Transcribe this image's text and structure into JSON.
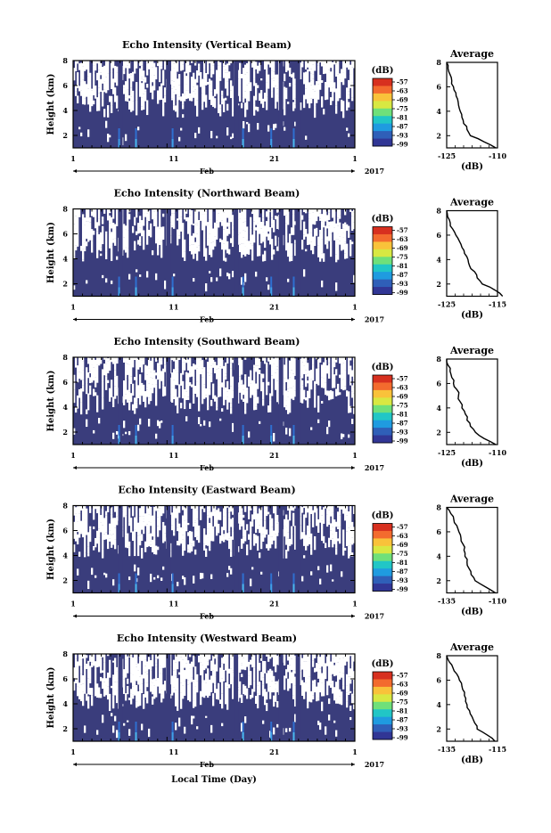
{
  "figure": {
    "xlabel": "Local Time (Day)"
  },
  "colorbar": {
    "unit": "(dB)",
    "ticks": [
      "-57",
      "-63",
      "-69",
      "-75",
      "-81",
      "-87",
      "-93",
      "-99"
    ],
    "colors": [
      "#313695",
      "#2f5fb8",
      "#1f9be0",
      "#21c6c6",
      "#6fe07a",
      "#d8e842",
      "#f9c23a",
      "#f36b2e",
      "#d7301f"
    ]
  },
  "chart_data": [
    {
      "type": "heatmap",
      "title": "Echo Intensity (Vertical Beam)",
      "ylabel": "Height (km)",
      "ylim": [
        1,
        8
      ],
      "yticks": [
        "2",
        "4",
        "6",
        "8"
      ],
      "xlim": [
        1,
        31
      ],
      "xticks": [
        "1",
        "11",
        "21",
        "1"
      ],
      "month_label": "Feb",
      "year_label": "2017",
      "colorbar_ticks": [
        "-57",
        "-63",
        "-69",
        "-75",
        "-81",
        "-87",
        "-93",
        "-99"
      ],
      "profile": {
        "title": "Average",
        "xlabel": "(dB)",
        "xlim": [
          -125,
          -110
        ],
        "xticks": [
          "-125",
          "-110"
        ],
        "yticks": [
          "2",
          "4",
          "6",
          "8"
        ],
        "height_km": [
          1.0,
          1.5,
          2.0,
          2.5,
          3.0,
          3.5,
          4.0,
          4.5,
          5.0,
          5.5,
          6.0,
          6.5,
          7.0,
          7.5,
          8.0
        ],
        "db": [
          -110.5,
          -114.0,
          -118.0,
          -119.0,
          -120.0,
          -120.5,
          -121.0,
          -121.5,
          -121.8,
          -122.3,
          -123.0,
          -123.5,
          -124.0,
          -124.6,
          -125.0
        ]
      }
    },
    {
      "type": "heatmap",
      "title": "Echo Intensity (Northward Beam)",
      "ylabel": "Height (km)",
      "ylim": [
        1,
        8
      ],
      "yticks": [
        "2",
        "4",
        "6",
        "8"
      ],
      "xlim": [
        1,
        31
      ],
      "xticks": [
        "1",
        "11",
        "21",
        "1"
      ],
      "month_label": "Feb",
      "year_label": "2017",
      "colorbar_ticks": [
        "-57",
        "-63",
        "-69",
        "-75",
        "-81",
        "-87",
        "-93",
        "-99"
      ],
      "profile": {
        "title": "Average",
        "xlabel": "(dB)",
        "xlim": [
          -125,
          -115
        ],
        "xticks": [
          "-125",
          "-115"
        ],
        "yticks": [
          "2",
          "4",
          "6",
          "8"
        ],
        "height_km": [
          1.0,
          1.5,
          2.0,
          2.5,
          3.0,
          3.5,
          4.0,
          4.5,
          5.0,
          5.5,
          6.0,
          6.5,
          7.0,
          7.5,
          8.0
        ],
        "db": [
          -114.0,
          -115.5,
          -118.0,
          -119.0,
          -119.5,
          -120.5,
          -120.8,
          -121.5,
          -122.0,
          -122.5,
          -123.2,
          -123.8,
          -124.3,
          -124.8,
          -125.0
        ]
      }
    },
    {
      "type": "heatmap",
      "title": "Echo Intensity (Southward Beam)",
      "ylabel": "Height (km)",
      "ylim": [
        1,
        8
      ],
      "yticks": [
        "2",
        "4",
        "6",
        "8"
      ],
      "xlim": [
        1,
        31
      ],
      "xticks": [
        "1",
        "11",
        "21",
        "1"
      ],
      "month_label": "Feb",
      "year_label": "2017",
      "colorbar_ticks": [
        "-57",
        "-63",
        "-69",
        "-75",
        "-81",
        "-87",
        "-93",
        "-99"
      ],
      "profile": {
        "title": "Average",
        "xlabel": "(dB)",
        "xlim": [
          -125,
          -110
        ],
        "xticks": [
          "-125",
          "-110"
        ],
        "yticks": [
          "2",
          "4",
          "6",
          "8"
        ],
        "height_km": [
          1.0,
          1.5,
          2.0,
          2.5,
          3.0,
          3.5,
          4.0,
          4.5,
          5.0,
          5.5,
          6.0,
          6.5,
          7.0,
          7.5,
          8.0
        ],
        "db": [
          -110.5,
          -114.0,
          -116.5,
          -118.0,
          -119.0,
          -119.5,
          -120.5,
          -121.0,
          -121.5,
          -122.0,
          -123.0,
          -123.5,
          -124.0,
          -124.6,
          -125.0
        ]
      }
    },
    {
      "type": "heatmap",
      "title": "Echo Intensity (Eastward Beam)",
      "ylabel": "Height (km)",
      "ylim": [
        1,
        8
      ],
      "yticks": [
        "2",
        "4",
        "6",
        "8"
      ],
      "xlim": [
        1,
        31
      ],
      "xticks": [
        "1",
        "11",
        "21",
        "1"
      ],
      "month_label": "Feb",
      "year_label": "2017",
      "colorbar_ticks": [
        "-57",
        "-63",
        "-69",
        "-75",
        "-81",
        "-87",
        "-93",
        "-99"
      ],
      "profile": {
        "title": "Average",
        "xlabel": "(dB)",
        "xlim": [
          -135,
          -110
        ],
        "xticks": [
          "-135",
          "-110"
        ],
        "yticks": [
          "2",
          "4",
          "6",
          "8"
        ],
        "height_km": [
          1.0,
          1.5,
          2.0,
          2.5,
          3.0,
          3.5,
          4.0,
          4.5,
          5.0,
          5.5,
          6.0,
          6.5,
          7.0,
          7.5,
          8.0
        ],
        "db": [
          -111.0,
          -116.0,
          -121.0,
          -123.0,
          -124.0,
          -125.0,
          -126.0,
          -126.5,
          -127.0,
          -128.0,
          -129.0,
          -130.0,
          -131.5,
          -133.0,
          -135.0
        ]
      }
    },
    {
      "type": "heatmap",
      "title": "Echo Intensity (Westward Beam)",
      "ylabel": "Height (km)",
      "ylim": [
        1,
        8
      ],
      "yticks": [
        "2",
        "4",
        "6",
        "8"
      ],
      "xlim": [
        1,
        31
      ],
      "xticks": [
        "1",
        "11",
        "21",
        "1"
      ],
      "month_label": "Feb",
      "year_label": "2017",
      "colorbar_ticks": [
        "-57",
        "-63",
        "-69",
        "-75",
        "-81",
        "-87",
        "-93",
        "-99"
      ],
      "profile": {
        "title": "Average",
        "xlabel": "(dB)",
        "xlim": [
          -135,
          -115
        ],
        "xticks": [
          "-135",
          "-115"
        ],
        "yticks": [
          "2",
          "4",
          "6",
          "8"
        ],
        "height_km": [
          1.0,
          1.5,
          2.0,
          2.5,
          3.0,
          3.5,
          4.0,
          4.5,
          5.0,
          5.5,
          6.0,
          6.5,
          7.0,
          7.5,
          8.0
        ],
        "db": [
          -116.0,
          -119.0,
          -123.0,
          -124.0,
          -125.0,
          -126.0,
          -127.0,
          -127.5,
          -128.0,
          -129.0,
          -130.0,
          -131.0,
          -132.5,
          -134.0,
          -135.0
        ]
      }
    }
  ]
}
